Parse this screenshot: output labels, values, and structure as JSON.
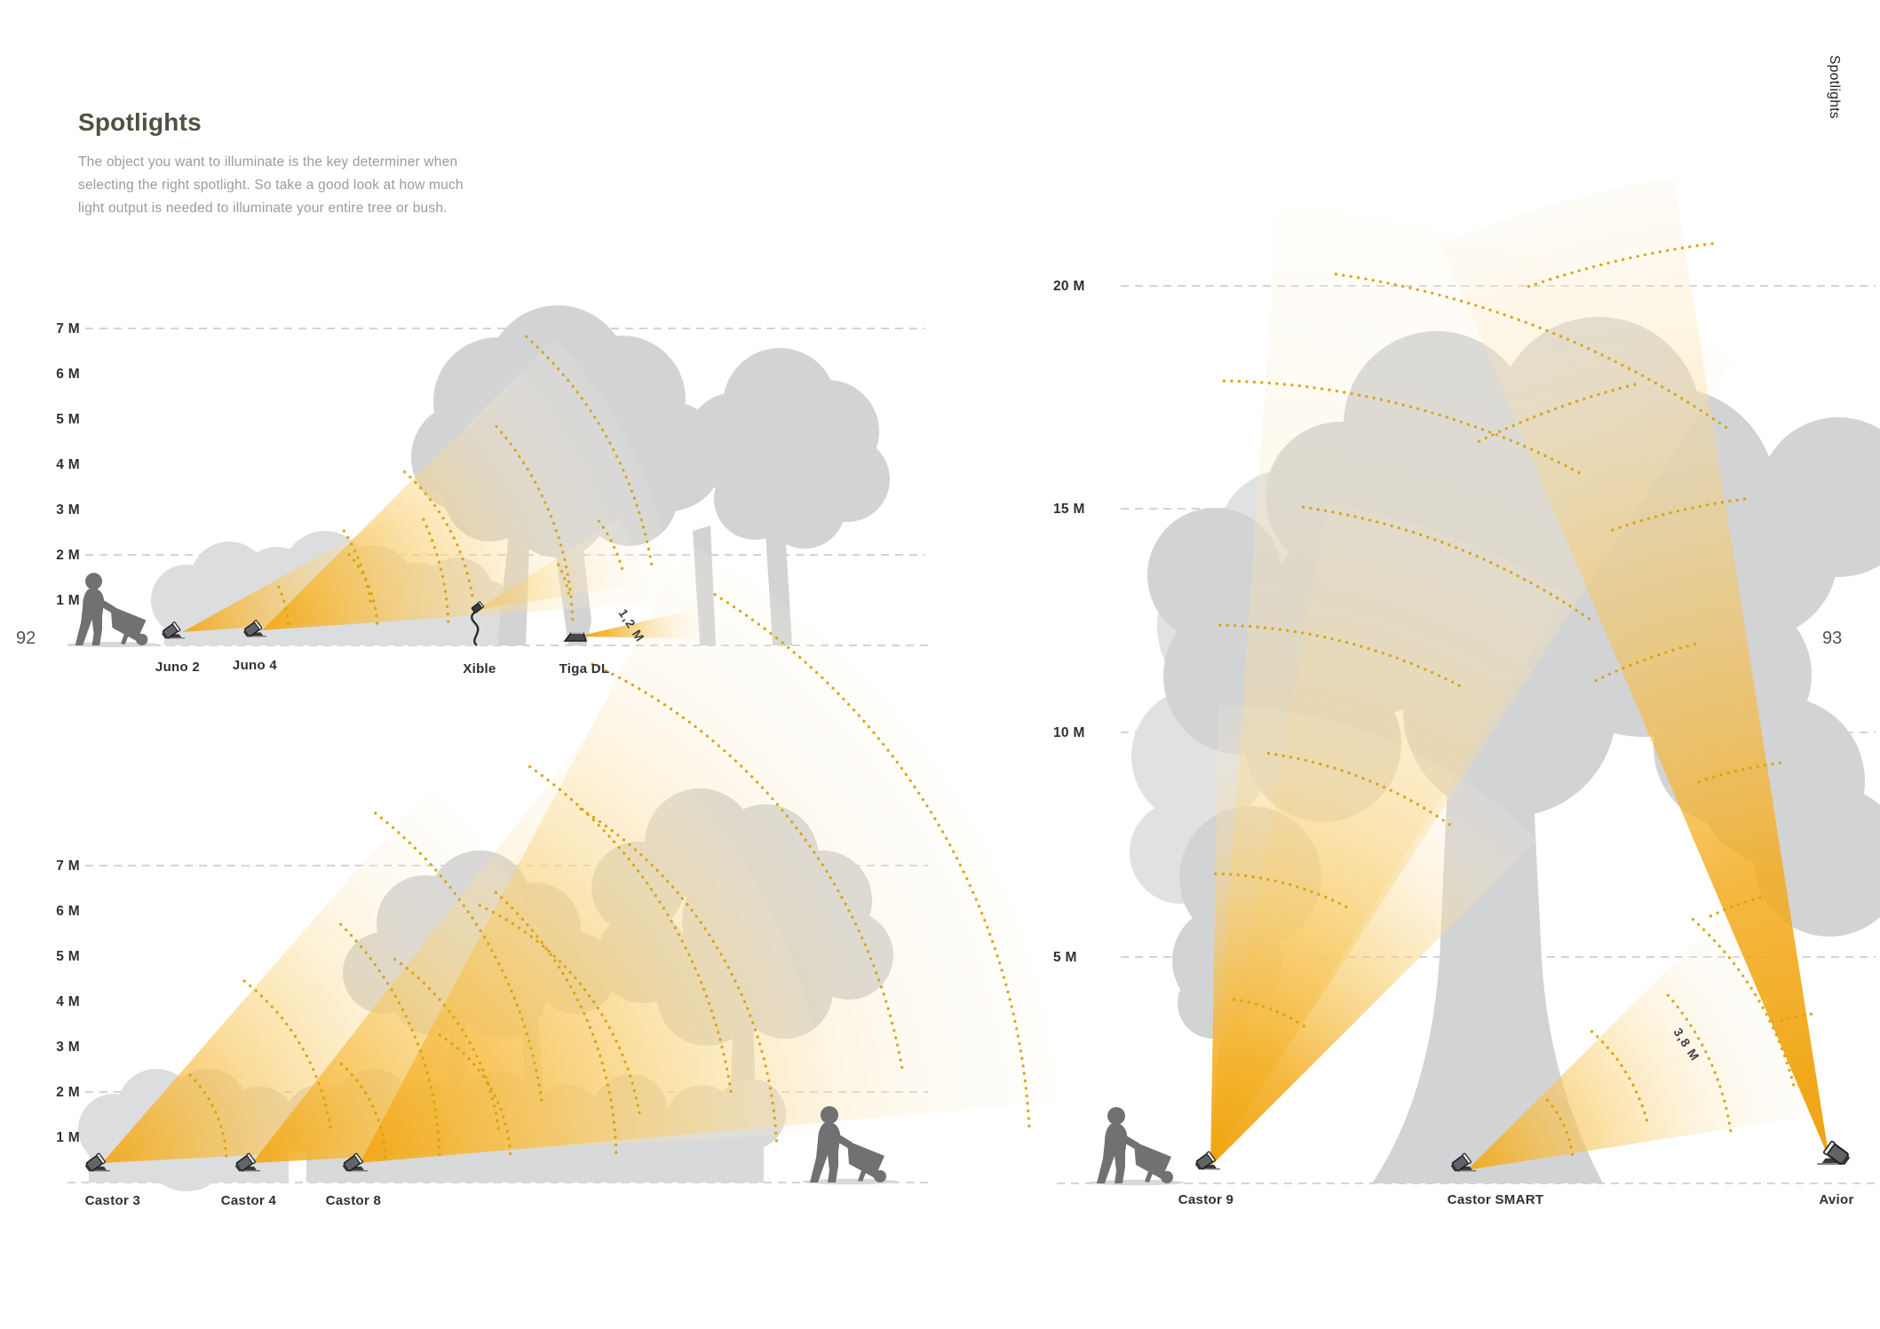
{
  "page": {
    "title": "Spotlights",
    "intro_lines": [
      "The object you want to illuminate is the key determiner when",
      "selecting the right spotlight. So take a good look at how much",
      "light output is needed to illuminate your entire tree or bush."
    ],
    "left_page_number": "92",
    "right_page_number": "93",
    "side_tab": "Spotlights"
  },
  "diagram_top_left": {
    "scale_labels": [
      "7 M",
      "6 M",
      "5 M",
      "4 M",
      "3 M",
      "2 M",
      "1 M"
    ],
    "products": [
      {
        "name": "Juno 2"
      },
      {
        "name": "Juno 4"
      },
      {
        "name": "Xible"
      },
      {
        "name": "Tiga DL"
      }
    ],
    "beam_annotation": "1,2 M"
  },
  "diagram_bottom_left": {
    "scale_labels": [
      "7 M",
      "6 M",
      "5 M",
      "4 M",
      "3 M",
      "2 M",
      "1 M"
    ],
    "products": [
      {
        "name": "Castor 3"
      },
      {
        "name": "Castor 4"
      },
      {
        "name": "Castor 8"
      }
    ]
  },
  "diagram_right": {
    "scale_labels": [
      "20 M",
      "15 M",
      "10 M",
      "5 M"
    ],
    "products": [
      {
        "name": "Castor 9"
      },
      {
        "name": "Castor SMART"
      },
      {
        "name": "Avior"
      }
    ],
    "beam_annotation": "3,8 M"
  },
  "colors": {
    "title": "#4d5340",
    "body_text": "#9b9b9b",
    "label_text": "#30302f",
    "beam_gold": "#f2a613",
    "beam_dot": "#d7a40d",
    "tree_gray": "#d2d3d5",
    "tree_gray_light": "#e0e1e3",
    "bush_gray": "#dcdddf",
    "gridline": "#c6c6c6",
    "silhouette": "#717174"
  }
}
